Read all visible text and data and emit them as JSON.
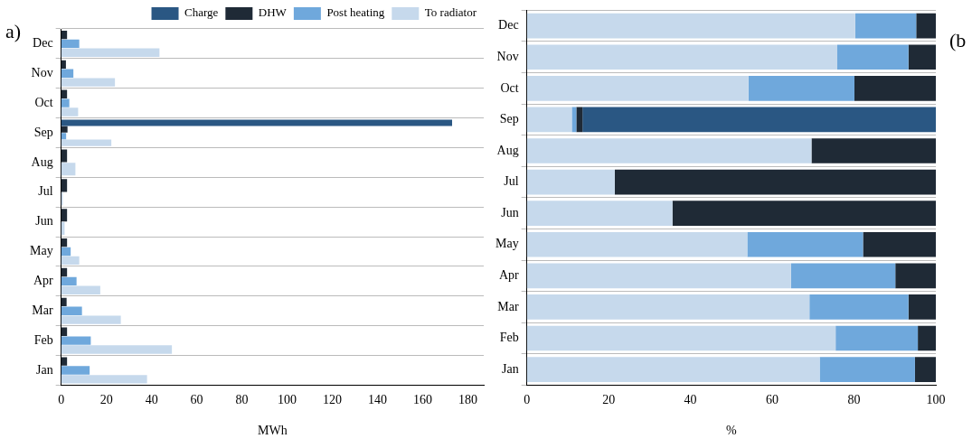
{
  "chart_data": [
    {
      "type": "bar",
      "orientation": "horizontal",
      "xlabel": "MWh",
      "annotations": [
        "a)"
      ],
      "legend": "top",
      "grid": "y",
      "categories": [
        "Dec",
        "Nov",
        "Oct",
        "Sep",
        "Aug",
        "Jul",
        "Jun",
        "May",
        "Apr",
        "Mar",
        "Feb",
        "Jan"
      ],
      "xlim": [
        0,
        187
      ],
      "xticks": [
        0,
        20,
        40,
        60,
        80,
        100,
        120,
        140,
        160,
        180
      ],
      "series": [
        {
          "name": "Charge",
          "color": "#2a5783",
          "values": [
            null,
            null,
            null,
            173,
            null,
            null,
            null,
            null,
            null,
            null,
            null,
            null
          ]
        },
        {
          "name": "DHW",
          "color": "#1f2a36",
          "values": [
            2.6,
            2.1,
            2.6,
            2.8,
            2.6,
            2.6,
            2.6,
            2.6,
            2.6,
            2.4,
            2.6,
            2.6
          ]
        },
        {
          "name": "Post heating",
          "color": "#6fa8dc",
          "values": [
            8,
            5.4,
            3.6,
            2.2,
            null,
            null,
            null,
            4.2,
            6.8,
            9.2,
            13.1,
            12.6
          ]
        },
        {
          "name": "To radiator",
          "color": "#c6d9ec",
          "values": [
            43.5,
            23.8,
            7.5,
            22.2,
            6.3,
            0.7,
            1.5,
            8,
            17.3,
            26.4,
            49,
            38
          ]
        }
      ]
    },
    {
      "type": "bar",
      "orientation": "horizontal",
      "stacked": true,
      "xlabel": "%",
      "annotations": [
        "(b"
      ],
      "grid": "y",
      "categories": [
        "Dec",
        "Nov",
        "Oct",
        "Sep",
        "Aug",
        "Jul",
        "Jun",
        "May",
        "Apr",
        "Mar",
        "Feb",
        "Jan"
      ],
      "xlim": [
        0,
        100
      ],
      "xticks": [
        0,
        20,
        40,
        60,
        80,
        100
      ],
      "series": [
        {
          "color": "#c6d9ec",
          "values": [
            80.3,
            75.9,
            54.2,
            11,
            69.6,
            21.5,
            35.6,
            53.9,
            64.6,
            69.1,
            75.5,
            71.6
          ]
        },
        {
          "color": "#6fa8dc",
          "values": [
            14.9,
            17.4,
            25.9,
            1.1,
            null,
            null,
            null,
            28.3,
            25.5,
            24.2,
            20.1,
            23.3
          ]
        },
        {
          "color": "#1f2a36",
          "values": [
            4.8,
            6.7,
            19.9,
            1.5,
            30.4,
            78.5,
            64.4,
            17.8,
            9.9,
            6.7,
            4.4,
            5.1
          ]
        },
        {
          "color": "#2a5783",
          "values": [
            null,
            null,
            null,
            86.4,
            null,
            null,
            null,
            null,
            null,
            null,
            null,
            null
          ]
        }
      ]
    }
  ]
}
